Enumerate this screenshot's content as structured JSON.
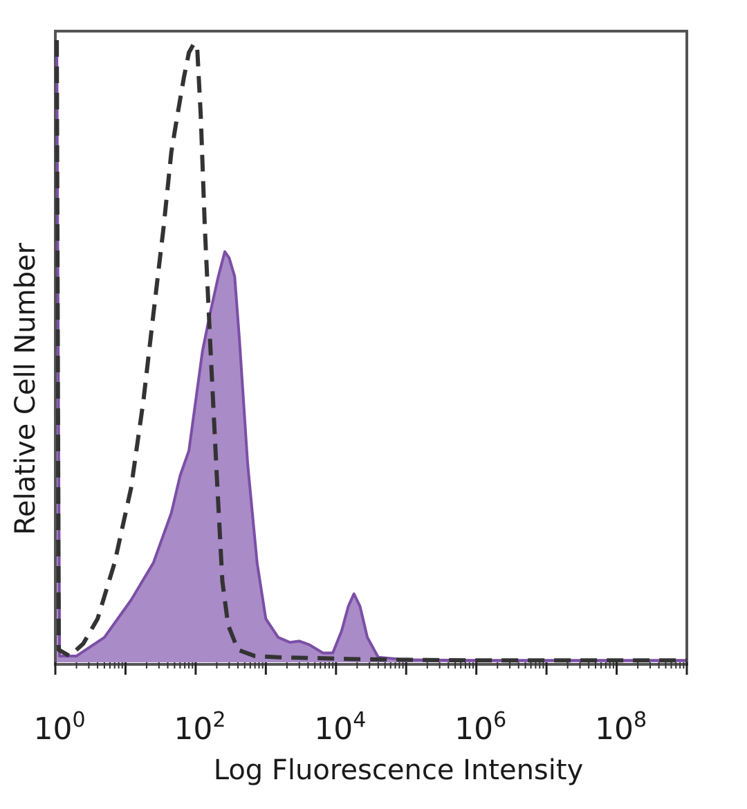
{
  "chart_data": {
    "type": "area",
    "xlabel": "Log Fluorescence Intensity",
    "ylabel": "Relative Cell Number",
    "x_scale": "log",
    "xlim": [
      1,
      1000000000
    ],
    "ylim": [
      0,
      100
    ],
    "x_ticks": [
      {
        "base": "10",
        "exponent": "0",
        "value": 1
      },
      {
        "base": "10",
        "exponent": "2",
        "value": 100
      },
      {
        "base": "10",
        "exponent": "4",
        "value": 10000
      },
      {
        "base": "10",
        "exponent": "6",
        "value": 1000000
      },
      {
        "base": "10",
        "exponent": "8",
        "value": 100000000
      }
    ],
    "grid": false,
    "legend": "none",
    "series": [
      {
        "style": "dashed",
        "fill": false,
        "color": "#333333",
        "points": [
          [
            1.05,
            100
          ],
          [
            1.12,
            2
          ],
          [
            1.6,
            1
          ],
          [
            2.5,
            3
          ],
          [
            4,
            7
          ],
          [
            7,
            16
          ],
          [
            12,
            28
          ],
          [
            18,
            42
          ],
          [
            25,
            56
          ],
          [
            35,
            70
          ],
          [
            45,
            82
          ],
          [
            55,
            88
          ],
          [
            68,
            94
          ],
          [
            80,
            98
          ],
          [
            95,
            99.5
          ],
          [
            105,
            99
          ],
          [
            118,
            88
          ],
          [
            135,
            70
          ],
          [
            160,
            52
          ],
          [
            200,
            30
          ],
          [
            240,
            13
          ],
          [
            290,
            6
          ],
          [
            400,
            2
          ],
          [
            700,
            1
          ],
          [
            1500,
            0.8
          ],
          [
            4000,
            0.7
          ],
          [
            20000,
            0.5
          ],
          [
            100000,
            0.4
          ],
          [
            1000000,
            0.3
          ],
          [
            10000000,
            0.3
          ],
          [
            100000000,
            0.3
          ],
          [
            1000000000,
            0.3
          ]
        ]
      },
      {
        "style": "solid",
        "fill": true,
        "color": "#7b4fa6",
        "fill_color": "#a98bc8",
        "points": [
          [
            1.05,
            100
          ],
          [
            1.15,
            1
          ],
          [
            2,
            1
          ],
          [
            5,
            4
          ],
          [
            12,
            10
          ],
          [
            25,
            16
          ],
          [
            45,
            24
          ],
          [
            60,
            30
          ],
          [
            80,
            34
          ],
          [
            100,
            42
          ],
          [
            125,
            50
          ],
          [
            160,
            56
          ],
          [
            210,
            62
          ],
          [
            260,
            66
          ],
          [
            300,
            65
          ],
          [
            360,
            62
          ],
          [
            420,
            52
          ],
          [
            550,
            32
          ],
          [
            750,
            16
          ],
          [
            1000,
            7
          ],
          [
            1500,
            4
          ],
          [
            2200,
            3.2
          ],
          [
            3000,
            3.4
          ],
          [
            4200,
            2.8
          ],
          [
            6500,
            1.5
          ],
          [
            9000,
            1.5
          ],
          [
            12000,
            5
          ],
          [
            15000,
            9
          ],
          [
            18000,
            11
          ],
          [
            22000,
            9
          ],
          [
            28000,
            4
          ],
          [
            40000,
            0.8
          ],
          [
            100000,
            0.4
          ],
          [
            1000000,
            0.3
          ],
          [
            10000000,
            0.3
          ],
          [
            1000000000,
            0.3
          ]
        ]
      }
    ]
  }
}
